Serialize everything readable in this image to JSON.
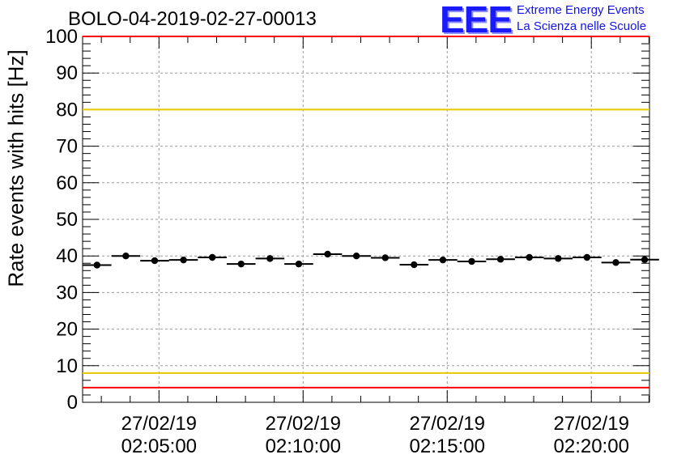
{
  "title": "BOLO-04-2019-02-27-00013",
  "logo": {
    "mark": "EEE",
    "line1": "Extreme Energy Events",
    "line2": "La Scienza nelle Scuole"
  },
  "colors": {
    "red_limit": "#ff0000",
    "yellow_limit": "#e6c800",
    "grid": "#9a9a9a",
    "points": "#000000",
    "logo": "#1a1aff"
  },
  "chart_data": {
    "type": "scatter",
    "title": "BOLO-04-2019-02-27-00013",
    "xlabel": "",
    "ylabel": "Rate events with hits [Hz]",
    "ylim": [
      0,
      100
    ],
    "yticks": [
      0,
      10,
      20,
      30,
      40,
      50,
      60,
      70,
      80,
      90,
      100
    ],
    "xlim": [
      "02:02:21",
      "02:22:01"
    ],
    "xticks": [
      {
        "value": "02:05:00",
        "date": "27/02/19",
        "time": "02:05:00"
      },
      {
        "value": "02:10:00",
        "date": "27/02/19",
        "time": "02:10:00"
      },
      {
        "value": "02:15:00",
        "date": "27/02/19",
        "time": "02:15:00"
      },
      {
        "value": "02:20:00",
        "date": "27/02/19",
        "time": "02:20:00"
      }
    ],
    "grid": true,
    "bin_width_seconds": 60,
    "x": [
      "02:02:51",
      "02:03:51",
      "02:04:51",
      "02:05:51",
      "02:06:51",
      "02:07:51",
      "02:08:51",
      "02:09:51",
      "02:10:51",
      "02:11:51",
      "02:12:51",
      "02:13:51",
      "02:14:51",
      "02:15:51",
      "02:16:51",
      "02:17:51",
      "02:18:51",
      "02:19:51",
      "02:20:51",
      "02:21:51"
    ],
    "values": [
      37.5,
      40.0,
      38.7,
      38.9,
      39.6,
      37.8,
      39.3,
      37.8,
      40.5,
      40.0,
      39.5,
      37.6,
      38.9,
      38.5,
      39.1,
      39.6,
      39.3,
      39.6,
      38.2,
      39.0
    ],
    "reference_lines": [
      {
        "y": 100,
        "color": "red"
      },
      {
        "y": 80,
        "color": "yellow"
      },
      {
        "y": 8,
        "color": "yellow"
      },
      {
        "y": 4,
        "color": "red"
      }
    ]
  }
}
